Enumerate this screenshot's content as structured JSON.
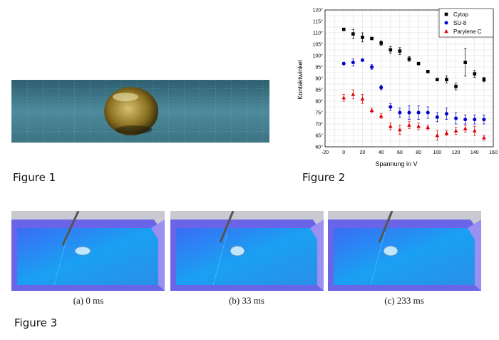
{
  "figures": {
    "fig1_caption": "Figure 1",
    "fig2_caption": "Figure 2",
    "fig3_caption": "Figure 3",
    "subcaptions": [
      "(a) 0 ms",
      "(b) 33 ms",
      "(c) 233 ms"
    ]
  },
  "chart_data": {
    "type": "scatter",
    "xlabel": "Spannung in V",
    "ylabel": "Kontaktwinkel",
    "xlim": [
      -20,
      160
    ],
    "ylim": [
      60,
      120
    ],
    "xticks": [
      "-20",
      "0",
      "20",
      "40",
      "60",
      "80",
      "100",
      "120",
      "140",
      "160"
    ],
    "yticks": [
      "60°",
      "65°",
      "70°",
      "75°",
      "80°",
      "85°",
      "90°",
      "95°",
      "100°",
      "105°",
      "110°",
      "115°",
      "120°"
    ],
    "grid": true,
    "legend_position": "top-right",
    "series": [
      {
        "name": "Cytop",
        "marker": "square",
        "color": "#000000",
        "x": [
          0,
          10,
          20,
          30,
          40,
          50,
          60,
          70,
          80,
          90,
          100,
          110,
          120,
          130,
          140,
          150
        ],
        "y": [
          111.5,
          109.5,
          108,
          107.5,
          105.5,
          102.5,
          102,
          98.5,
          96.5,
          93,
          89.5,
          89.5,
          86.5,
          97,
          92,
          89.5
        ],
        "err": [
          0.5,
          2,
          2,
          0.5,
          1,
          1.5,
          1.5,
          1,
          0.5,
          0.5,
          0.5,
          1.5,
          1.5,
          6,
          1.5,
          1
        ]
      },
      {
        "name": "SU-8",
        "marker": "circle",
        "color": "#0000cc",
        "x": [
          0,
          10,
          20,
          30,
          40,
          50,
          60,
          70,
          80,
          90,
          100,
          110,
          120,
          130,
          140,
          150
        ],
        "y": [
          96.5,
          97,
          98,
          95,
          86,
          77.5,
          75,
          75,
          75,
          75,
          73,
          74.5,
          72.5,
          72,
          72,
          72
        ],
        "err": [
          0.5,
          1.5,
          0.5,
          1,
          1,
          1.5,
          2,
          3,
          3,
          2.5,
          2,
          2.5,
          2.5,
          2,
          2,
          2
        ]
      },
      {
        "name": "Parylene C",
        "marker": "triangle",
        "color": "#dd0000",
        "x": [
          0,
          10,
          20,
          30,
          40,
          50,
          60,
          70,
          80,
          90,
          100,
          110,
          120,
          130,
          140,
          150
        ],
        "y": [
          81.5,
          83,
          81,
          76,
          73.5,
          69,
          67.5,
          69.5,
          69,
          68.5,
          65,
          66,
          67,
          68,
          67,
          64
        ],
        "err": [
          1.5,
          2,
          2,
          1,
          1,
          1.5,
          2,
          1.5,
          1.5,
          1,
          2,
          1,
          1.5,
          1.5,
          2,
          1
        ]
      }
    ]
  }
}
